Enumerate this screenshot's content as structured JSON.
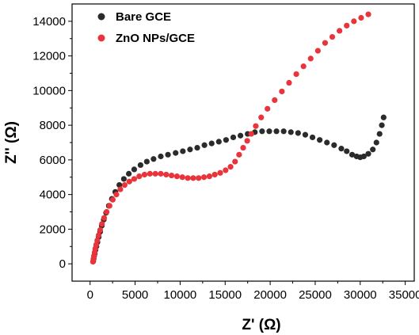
{
  "chart_data": {
    "type": "scatter",
    "xlabel": "Z' (Ω)",
    "ylabel": "Z'' (Ω)",
    "xlim": [
      -2000,
      36000
    ],
    "ylim": [
      -1000,
      15000
    ],
    "xticks": [
      0,
      5000,
      10000,
      15000,
      20000,
      25000,
      30000,
      35000
    ],
    "yticks": [
      0,
      2000,
      4000,
      6000,
      8000,
      10000,
      12000,
      14000
    ],
    "grid": false,
    "legend_position": "top-left",
    "series": [
      {
        "name": "Bare GCE",
        "color": "#2b2b2b",
        "x": [
          350,
          400,
          450,
          520,
          600,
          700,
          820,
          960,
          1120,
          1300,
          1520,
          1780,
          2080,
          2420,
          2800,
          3250,
          3750,
          4300,
          4900,
          5600,
          6300,
          7050,
          7850,
          8650,
          9500,
          10300,
          11100,
          11900,
          12700,
          13500,
          14300,
          15100,
          15900,
          16700,
          17500,
          18300,
          19100,
          19900,
          20700,
          21500,
          22300,
          23100,
          23900,
          24700,
          25500,
          26300,
          27100,
          27900,
          28500,
          29100,
          29600,
          30000,
          30400,
          30900,
          31400,
          31800,
          32150,
          32400,
          32600
        ],
        "y": [
          150,
          300,
          450,
          600,
          800,
          1000,
          1250,
          1550,
          1850,
          2200,
          2550,
          2950,
          3350,
          3750,
          4150,
          4550,
          4900,
          5200,
          5450,
          5700,
          5900,
          6050,
          6200,
          6300,
          6400,
          6500,
          6600,
          6700,
          6850,
          6950,
          7050,
          7150,
          7300,
          7400,
          7500,
          7600,
          7650,
          7650,
          7650,
          7650,
          7600,
          7550,
          7450,
          7300,
          7150,
          7000,
          6850,
          6650,
          6500,
          6300,
          6200,
          6150,
          6200,
          6350,
          6600,
          7000,
          7500,
          8000,
          8450
        ]
      },
      {
        "name": "ZnO NPs/GCE",
        "color": "#e8343a",
        "x": [
          320,
          370,
          430,
          500,
          580,
          680,
          800,
          950,
          1120,
          1320,
          1560,
          1840,
          2160,
          2520,
          2920,
          3360,
          3840,
          4360,
          4900,
          5460,
          6050,
          6650,
          7250,
          7850,
          8450,
          9050,
          9650,
          10250,
          10850,
          11450,
          12050,
          12650,
          13250,
          13850,
          14450,
          15050,
          15600,
          16100,
          16550,
          17000,
          17450,
          17900,
          18400,
          19000,
          19700,
          20500,
          21300,
          22100,
          22900,
          23700,
          24500,
          25300,
          26100,
          26900,
          27700,
          28500,
          29300,
          30100,
          30900
        ],
        "y": [
          120,
          280,
          450,
          650,
          870,
          1100,
          1350,
          1650,
          1950,
          2300,
          2650,
          3000,
          3350,
          3700,
          4000,
          4300,
          4550,
          4750,
          4900,
          5050,
          5150,
          5200,
          5200,
          5200,
          5150,
          5100,
          5050,
          5000,
          4950,
          4950,
          4950,
          5000,
          5050,
          5150,
          5250,
          5400,
          5600,
          5900,
          6300,
          6700,
          7100,
          7500,
          7950,
          8450,
          8950,
          9450,
          9950,
          10450,
          10950,
          11400,
          11850,
          12300,
          12750,
          13100,
          13450,
          13750,
          14000,
          14200,
          14400
        ]
      }
    ]
  }
}
